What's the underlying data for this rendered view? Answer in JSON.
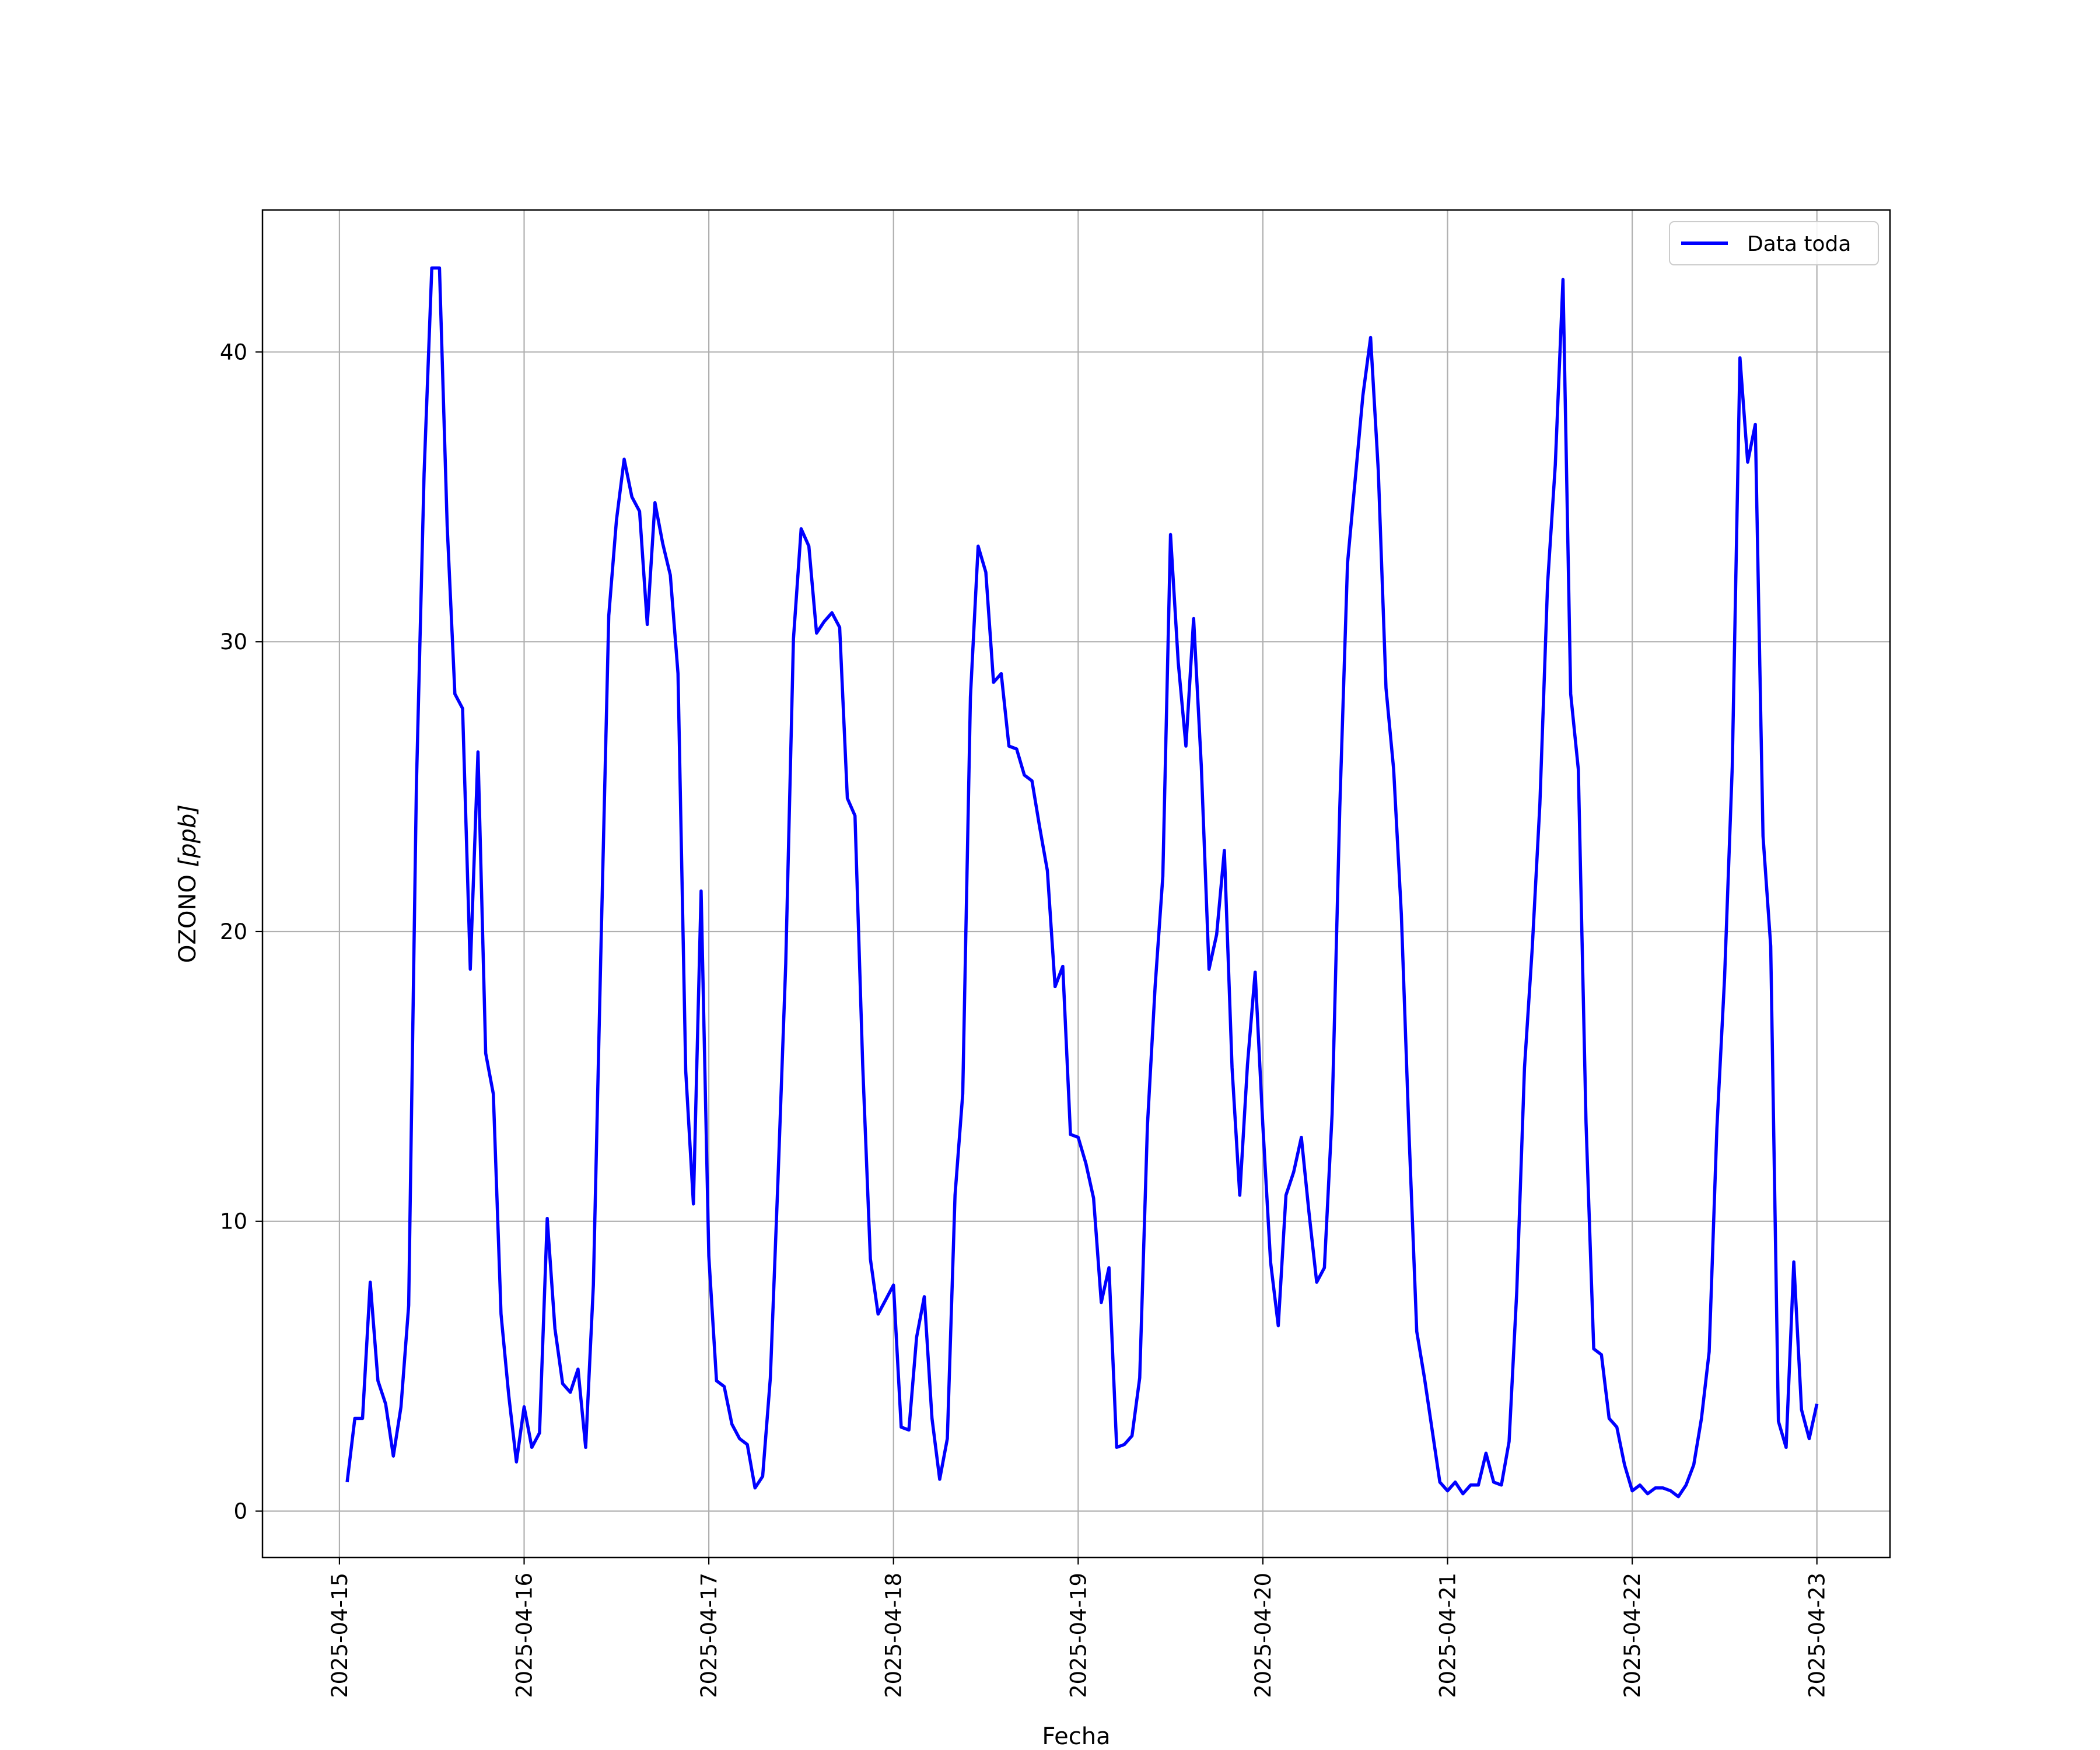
{
  "chart_data": {
    "type": "line",
    "title": "",
    "xlabel": "Fecha",
    "ylabel": "OZONO [ppb]",
    "ylabel_parts": {
      "base": "OZONO ",
      "unit": "[ppb]"
    },
    "ylim": [
      -1.6,
      44.9
    ],
    "xlim": [
      "2025-04-14 14:00",
      "2025-04-23 09:30"
    ],
    "x_ticks": [
      "2025-04-15",
      "2025-04-16",
      "2025-04-17",
      "2025-04-18",
      "2025-04-19",
      "2025-04-20",
      "2025-04-21",
      "2025-04-22",
      "2025-04-23"
    ],
    "y_ticks": [
      0,
      10,
      20,
      30,
      40
    ],
    "grid": true,
    "legend": {
      "position": "top-right",
      "entries": [
        "Data toda"
      ]
    },
    "colors": {
      "series": "#0000ff",
      "grid": "#b0b0b0",
      "axes": "#000000"
    },
    "series": [
      {
        "name": "Data toda",
        "x_start": "2025-04-15 01:00",
        "x_step": "1h",
        "x_end": "2025-04-23 00:00",
        "values": [
          1.0,
          3.2,
          3.2,
          7.9,
          4.5,
          3.7,
          1.9,
          3.6,
          7.1,
          25.0,
          35.8,
          42.9,
          42.9,
          34.0,
          28.2,
          27.7,
          18.7,
          26.2,
          15.8,
          14.4,
          6.8,
          4.0,
          1.7,
          3.6,
          2.2,
          2.7,
          10.1,
          6.3,
          4.4,
          4.1,
          4.9,
          2.2,
          7.8,
          19.6,
          30.9,
          34.2,
          36.3,
          35.0,
          34.5,
          30.6,
          34.8,
          33.4,
          32.3,
          28.9,
          15.2,
          10.6,
          21.4,
          8.8,
          4.5,
          4.3,
          3.0,
          2.5,
          2.3,
          0.8,
          1.2,
          4.6,
          11.5,
          18.9,
          30.1,
          33.9,
          33.3,
          30.3,
          30.7,
          31.0,
          30.5,
          24.6,
          24.0,
          15.4,
          8.7,
          6.8,
          7.3,
          7.8,
          2.9,
          2.8,
          6.0,
          7.4,
          3.2,
          1.1,
          2.5,
          10.9,
          14.4,
          28.1,
          33.3,
          32.4,
          28.6,
          28.9,
          26.4,
          26.3,
          25.4,
          25.2,
          23.6,
          22.1,
          18.1,
          18.8,
          13.0,
          12.9,
          12.0,
          10.8,
          7.2,
          8.4,
          2.2,
          2.3,
          2.6,
          4.6,
          13.3,
          18.1,
          21.9,
          33.7,
          29.3,
          26.4,
          30.8,
          25.7,
          18.7,
          19.9,
          22.8,
          15.3,
          10.9,
          15.4,
          18.6,
          13.3,
          8.6,
          6.4,
          10.9,
          11.7,
          12.9,
          10.3,
          7.9,
          8.4,
          13.7,
          24.3,
          32.7,
          35.6,
          38.5,
          40.5,
          35.9,
          28.4,
          25.6,
          20.6,
          13.0,
          6.2,
          4.6,
          2.8,
          1.0,
          0.7,
          1.0,
          0.6,
          0.9,
          0.9,
          2.0,
          1.0,
          0.9,
          2.4,
          7.6,
          15.3,
          19.4,
          24.4,
          32.0,
          36.1,
          42.5,
          28.2,
          25.6,
          13.4,
          5.6,
          5.4,
          3.2,
          2.9,
          1.6,
          0.7,
          0.9,
          0.6,
          0.8,
          0.8,
          0.7,
          0.5,
          0.9,
          1.6,
          3.2,
          5.5,
          13.2,
          18.4,
          25.7,
          39.8,
          36.2,
          37.5,
          23.3,
          19.5,
          3.1,
          2.2,
          8.6,
          3.5,
          2.5,
          3.7
        ]
      }
    ]
  }
}
